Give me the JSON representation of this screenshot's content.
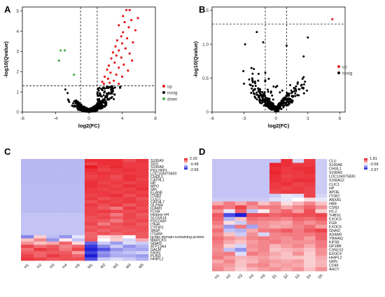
{
  "chart_data": [
    {
      "panel": "A",
      "type": "scatter",
      "xlabel": "log2(FC)",
      "ylabel": "-log10(Qvalue)",
      "xlim": [
        -8,
        8
      ],
      "ylim": [
        0,
        5.2
      ],
      "xticks": [
        -8,
        -4,
        0,
        4,
        8
      ],
      "yticks": [
        0,
        1,
        2,
        3,
        4,
        5
      ],
      "thresholds": {
        "x": [
          -1,
          1
        ],
        "y": 1.3
      },
      "legend": {
        "position": "right",
        "entries": [
          {
            "name": "up",
            "color": "#e41a1c"
          },
          {
            "name": "nosig",
            "color": "#000000"
          },
          {
            "name": "down",
            "color": "#4daf4a"
          }
        ]
      },
      "series": [
        {
          "name": "up",
          "color": "#e41a1c",
          "points": [
            [
              4.5,
              5.05
            ],
            [
              4.9,
              5.05
            ],
            [
              5.9,
              4.65
            ],
            [
              4.1,
              4.75
            ],
            [
              5.1,
              4.55
            ],
            [
              4.3,
              4.45
            ],
            [
              3.6,
              4.3
            ],
            [
              4.8,
              4.2
            ],
            [
              5.6,
              4.05
            ],
            [
              4.1,
              3.95
            ],
            [
              3.9,
              3.75
            ],
            [
              4.6,
              3.65
            ],
            [
              3.4,
              3.55
            ],
            [
              5.3,
              3.45
            ],
            [
              4.0,
              3.4
            ],
            [
              3.2,
              3.25
            ],
            [
              4.4,
              3.15
            ],
            [
              3.6,
              3.05
            ],
            [
              2.9,
              2.95
            ],
            [
              4.9,
              2.9
            ],
            [
              3.3,
              2.8
            ],
            [
              3.9,
              2.7
            ],
            [
              2.7,
              2.65
            ],
            [
              5.2,
              2.55
            ],
            [
              3.1,
              2.45
            ],
            [
              4.2,
              2.35
            ],
            [
              2.4,
              2.3
            ],
            [
              3.6,
              2.2
            ],
            [
              2.2,
              2.1
            ],
            [
              4.7,
              2.05
            ],
            [
              2.6,
              1.95
            ],
            [
              3.3,
              1.85
            ],
            [
              1.9,
              1.75
            ],
            [
              4.0,
              1.75
            ],
            [
              2.3,
              1.65
            ],
            [
              3.0,
              1.55
            ],
            [
              1.6,
              1.5
            ],
            [
              2.5,
              1.45
            ],
            [
              1.8,
              1.4
            ],
            [
              3.6,
              1.4
            ]
          ]
        },
        {
          "name": "down",
          "color": "#4daf4a",
          "points": [
            [
              -3.4,
              3.05
            ],
            [
              -2.9,
              3.05
            ],
            [
              -1.8,
              1.85
            ],
            [
              -3.6,
              2.55
            ]
          ]
        },
        {
          "name": "nosig",
          "color": "#000000",
          "points": []
        }
      ]
    },
    {
      "panel": "B",
      "type": "scatter",
      "xlabel": "log2(FC)",
      "ylabel": "-log10(Qvalue)",
      "xlim": [
        -6,
        6.5
      ],
      "ylim": [
        0,
        1.55
      ],
      "xticks": [
        -6,
        -3,
        0,
        3,
        6
      ],
      "yticks": [
        0,
        0.5,
        1.0,
        1.5
      ],
      "thresholds": {
        "x": [
          -1,
          1
        ],
        "y": 1.3
      },
      "legend": {
        "position": "right",
        "entries": [
          {
            "name": "up",
            "color": "#e41a1c"
          },
          {
            "name": "nosig",
            "color": "#000000"
          }
        ]
      },
      "series": [
        {
          "name": "up",
          "color": "#e41a1c",
          "points": [
            [
              5.3,
              1.37
            ]
          ]
        },
        {
          "name": "nosig",
          "color": "#000000",
          "points": []
        }
      ]
    },
    {
      "panel": "C",
      "type": "heatmap",
      "legend_ticks": [
        "2.03",
        "-0.48",
        "-2.99"
      ],
      "columns": [
        "H1",
        "H2",
        "H3",
        "H4",
        "H5",
        "M1",
        "M2",
        "M3",
        "M4",
        "M5"
      ],
      "rows": [
        "S100A9",
        "SDS",
        "S100A8",
        "PGLYRP1",
        "LOC104975830",
        "CHI3L1",
        "CATHL1",
        "HP",
        "MPO",
        "SRI",
        "ELANE",
        "ITGB2",
        "CLIC1",
        "CATHL7",
        "OLFM4",
        "ICAM3",
        "FLNA",
        "Histone H4",
        "SLC6A14",
        "PDCD6IP",
        "ITIH4",
        "CYFIP2",
        "VASP",
        "ITGAM",
        "Ig-like domain-containing protein",
        "MARCKS",
        "GNAI3",
        "ATP13A4",
        "GALM",
        "FASN",
        "PLIN3",
        "HHIPL2"
      ],
      "values": [
        [
          -0.75,
          -0.75,
          -0.75,
          -0.75,
          -0.75,
          1.7,
          1.7,
          1.7,
          1.4,
          1.65
        ],
        [
          -0.75,
          -0.75,
          -0.75,
          -0.75,
          -0.75,
          1.5,
          1.7,
          1.7,
          1.6,
          1.6
        ],
        [
          -0.75,
          -0.75,
          -0.75,
          -0.75,
          -0.75,
          1.9,
          1.6,
          1.75,
          1.6,
          1.6
        ],
        [
          -0.75,
          -0.75,
          -0.75,
          -0.75,
          -0.75,
          1.7,
          1.5,
          1.6,
          1.7,
          1.6
        ],
        [
          -0.75,
          -0.75,
          -0.75,
          -0.75,
          -0.75,
          1.6,
          1.7,
          1.6,
          1.6,
          1.6
        ],
        [
          -0.75,
          -0.75,
          -0.75,
          -0.75,
          -0.75,
          1.5,
          1.6,
          1.4,
          1.7,
          1.6
        ],
        [
          -0.75,
          -0.75,
          -0.75,
          -0.75,
          -0.75,
          1.6,
          1.6,
          1.5,
          1.7,
          1.5
        ],
        [
          -0.75,
          -0.75,
          -0.75,
          -0.75,
          -0.75,
          1.7,
          1.5,
          1.6,
          1.5,
          1.6
        ],
        [
          -0.7,
          -0.7,
          -0.7,
          -0.7,
          -0.7,
          1.7,
          1.6,
          1.5,
          1.7,
          1.6
        ],
        [
          -0.7,
          -0.7,
          -0.7,
          -0.7,
          -0.7,
          1.6,
          1.5,
          1.6,
          1.5,
          1.7
        ],
        [
          -0.7,
          -0.7,
          -0.7,
          -0.7,
          -0.7,
          1.6,
          1.6,
          1.5,
          1.6,
          1.5
        ],
        [
          -0.7,
          -0.7,
          -0.7,
          -0.7,
          -0.7,
          1.5,
          1.6,
          1.7,
          1.4,
          1.6
        ],
        [
          -0.7,
          -0.7,
          -0.7,
          -0.7,
          -0.7,
          1.6,
          1.4,
          1.5,
          1.6,
          1.4
        ],
        [
          -0.7,
          -0.7,
          -0.7,
          -0.7,
          -0.7,
          1.4,
          1.6,
          1.5,
          1.6,
          1.5
        ],
        [
          -0.7,
          -0.7,
          -0.7,
          -0.7,
          -0.7,
          1.6,
          1.4,
          1.6,
          1.3,
          1.5
        ],
        [
          -0.7,
          -0.7,
          -0.7,
          -0.7,
          -0.7,
          1.5,
          1.3,
          1.0,
          1.6,
          1.4
        ],
        [
          -0.7,
          -0.7,
          -0.7,
          -0.7,
          -0.7,
          1.5,
          1.6,
          1.5,
          1.4,
          1.5
        ],
        [
          -0.6,
          -0.6,
          -0.6,
          -0.6,
          -0.6,
          1.5,
          1.4,
          1.0,
          1.5,
          1.3
        ],
        [
          -0.6,
          -0.6,
          -0.6,
          -0.6,
          -0.6,
          1.4,
          1.5,
          1.3,
          1.5,
          1.4
        ],
        [
          -0.6,
          -0.6,
          -0.6,
          -0.6,
          -0.6,
          1.4,
          1.3,
          1.0,
          1.4,
          1.5
        ],
        [
          -0.6,
          -0.6,
          -0.6,
          -0.6,
          -0.6,
          1.5,
          1.0,
          1.4,
          1.5,
          1.3
        ],
        [
          -0.6,
          -0.6,
          -0.6,
          -0.6,
          -0.6,
          1.3,
          1.4,
          1.3,
          1.4,
          1.4
        ],
        [
          -0.6,
          -0.6,
          -0.6,
          -0.6,
          -0.6,
          1.4,
          1.2,
          1.4,
          1.3,
          1.4
        ],
        [
          -0.6,
          -0.6,
          -0.6,
          -0.6,
          -0.6,
          1.2,
          1.4,
          1.2,
          1.4,
          1.3
        ],
        [
          -1.4,
          0.3,
          -0.7,
          -1.2,
          -0.2,
          1.2,
          0.2,
          0.4,
          0.0,
          1.3
        ],
        [
          0.4,
          0.9,
          -1.2,
          0.1,
          -0.6,
          1.3,
          0.0,
          0.3,
          -0.4,
          0.6
        ],
        [
          0.8,
          0.4,
          0.6,
          1.2,
          0.2,
          -1.8,
          -0.5,
          -1.1,
          -0.3,
          -0.5
        ],
        [
          1.5,
          1.1,
          1.3,
          0.9,
          1.2,
          -2.5,
          -1.3,
          -0.5,
          -1.2,
          -0.8
        ],
        [
          1.1,
          1.6,
          1.4,
          1.0,
          1.5,
          -2.8,
          -2.1,
          -1.2,
          -0.9,
          -1.0
        ],
        [
          1.3,
          1.2,
          1.3,
          1.3,
          0.7,
          -2.3,
          -1.2,
          -0.8,
          -0.6,
          -0.4
        ],
        [
          1.5,
          1.2,
          1.6,
          1.4,
          1.2,
          -2.9,
          -1.4,
          -0.9,
          -0.9,
          -1.1
        ],
        [
          1.6,
          1.5,
          1.3,
          1.4,
          1.4,
          -2.1,
          -0.5,
          -0.3,
          -0.5,
          -0.8
        ]
      ]
    },
    {
      "panel": "D",
      "type": "heatmap",
      "legend_ticks": [
        "1.81",
        "-0.58",
        "-2.97"
      ],
      "columns": [
        "H1",
        "H2",
        "H3",
        "H4",
        "H5",
        "S1",
        "S2",
        "S3",
        "S4",
        "S5"
      ],
      "rows": [
        "CLU",
        "S100A8",
        "CHI3L1",
        "S100A9",
        "LOC104975830",
        "S100A12",
        "CLIC1",
        "HP",
        "APOE",
        "ITGB2",
        "ANXA1",
        "HBB",
        "CSN3",
        "H1-2",
        "THBS1",
        "EXOC5",
        "FGR",
        "EXOC6",
        "GNAI2",
        "ADAM9",
        "YWHAQ",
        "KIF5B",
        "GP1BB",
        "CSN1S2",
        "EXOC4",
        "HHIPL2",
        "GRN",
        "CD46",
        "AHCY"
      ],
      "values": [
        [
          -0.6,
          -0.6,
          -0.6,
          -0.6,
          -0.6,
          -0.6,
          1.7,
          -0.4,
          1.6,
          -0.5
        ],
        [
          -0.6,
          -0.6,
          -0.6,
          -0.6,
          -0.6,
          1.8,
          1.7,
          1.6,
          1.6,
          -0.5
        ],
        [
          -0.6,
          -0.6,
          -0.6,
          -0.6,
          -0.6,
          1.7,
          1.6,
          1.7,
          1.7,
          -0.5
        ],
        [
          -0.6,
          -0.6,
          -0.6,
          -0.6,
          -0.6,
          1.8,
          1.6,
          1.6,
          1.7,
          -0.5
        ],
        [
          -0.6,
          -0.6,
          -0.6,
          -0.6,
          -0.6,
          1.7,
          1.5,
          1.6,
          1.6,
          -0.5
        ],
        [
          -0.6,
          -0.6,
          -0.6,
          -0.6,
          -0.6,
          1.7,
          1.6,
          1.7,
          1.7,
          -0.5
        ],
        [
          -0.6,
          -0.6,
          -0.6,
          -0.6,
          -0.6,
          1.6,
          1.7,
          1.5,
          1.6,
          -0.5
        ],
        [
          -0.6,
          -0.6,
          -0.6,
          -0.6,
          -0.6,
          1.6,
          1.5,
          1.6,
          1.5,
          -0.5
        ],
        [
          -0.6,
          -0.6,
          -0.6,
          -0.6,
          -0.6,
          1.5,
          1.6,
          1.6,
          1.5,
          -0.5
        ],
        [
          -0.6,
          -0.6,
          -0.6,
          -0.6,
          -0.6,
          -0.5,
          -0.2,
          -0.3,
          1.5,
          -0.4
        ],
        [
          -0.5,
          -0.5,
          -0.5,
          -0.5,
          -0.5,
          -0.3,
          -0.2,
          0.0,
          0.2,
          -0.2
        ],
        [
          0.6,
          1.0,
          0.6,
          1.0,
          0.4,
          0.8,
          0.2,
          0.5,
          0.9,
          0.4
        ],
        [
          1.2,
          1.0,
          1.5,
          0.8,
          1.0,
          1.0,
          0.6,
          0.9,
          1.2,
          0.8
        ],
        [
          0.8,
          -0.2,
          1.2,
          -0.6,
          0.1,
          0.9,
          1.2,
          0.7,
          1.4,
          0.3
        ],
        [
          1.3,
          -2.2,
          -2.9,
          1.4,
          1.4,
          1.2,
          1.3,
          1.4,
          1.4,
          1.5
        ],
        [
          1.2,
          -0.8,
          0.4,
          1.1,
          1.0,
          1.0,
          0.9,
          1.2,
          1.1,
          1.3
        ],
        [
          1.0,
          0.2,
          -0.5,
          0.9,
          0.8,
          0.7,
          0.6,
          1.0,
          0.8,
          1.0
        ],
        [
          0.8,
          -1.1,
          1.0,
          -1.0,
          0.8,
          0.6,
          0.7,
          0.9,
          1.1,
          0.7
        ],
        [
          1.1,
          -0.6,
          -0.8,
          0.6,
          1.0,
          1.1,
          1.3,
          1.0,
          1.3,
          1.5
        ],
        [
          0.9,
          0.4,
          -0.5,
          0.8,
          -0.4,
          0.9,
          1.0,
          1.0,
          1.0,
          1.2
        ],
        [
          1.1,
          0.8,
          0.6,
          0.9,
          1.0,
          0.9,
          0.8,
          1.0,
          0.7,
          1.2
        ],
        [
          1.0,
          0.6,
          0.4,
          0.7,
          0.9,
          1.0,
          0.8,
          0.8,
          0.8,
          1.0
        ],
        [
          0.9,
          0.3,
          -0.4,
          0.8,
          0.9,
          0.5,
          0.7,
          0.9,
          0.6,
          1.0
        ],
        [
          0.8,
          -0.6,
          -1.2,
          0.7,
          0.9,
          0.4,
          0.5,
          0.6,
          0.4,
          0.8
        ],
        [
          0.9,
          1.0,
          -0.3,
          1.0,
          0.8,
          0.6,
          0.4,
          0.8,
          0.3,
          0.8
        ],
        [
          1.0,
          0.7,
          0.5,
          0.6,
          0.7,
          0.5,
          0.4,
          0.4,
          0.3,
          0.6
        ],
        [
          0.6,
          0.9,
          0.4,
          0.5,
          0.8,
          0.7,
          0.6,
          0.7,
          0.3,
          0.5
        ],
        [
          0.8,
          0.7,
          0.4,
          0.8,
          0.9,
          0.6,
          0.7,
          0.6,
          0.3,
          0.5
        ],
        [
          0.9,
          0.6,
          0.3,
          0.5,
          0.7,
          0.8,
          0.6,
          0.8,
          0.4,
          0.8
        ]
      ]
    }
  ],
  "colors": {
    "high": "#e8101a",
    "mid": "#ffffff",
    "low": "#1515d6",
    "up": "#e41a1c",
    "nosig": "#000000",
    "down": "#4daf4a"
  }
}
